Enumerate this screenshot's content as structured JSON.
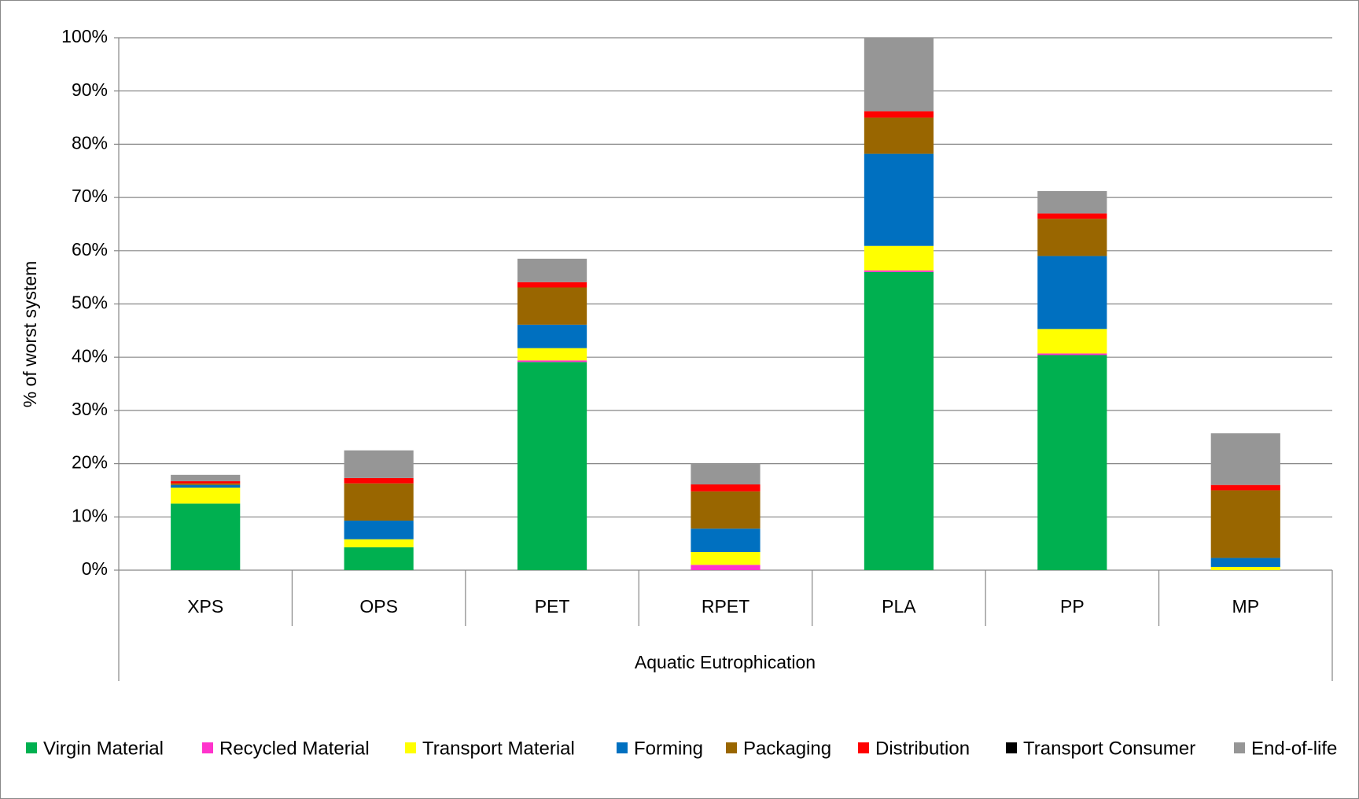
{
  "chart_data": {
    "type": "stacked_bar",
    "ylabel": "% of worst system",
    "xlabel": "Aquatic Eutrophication",
    "categories": [
      "XPS",
      "OPS",
      "PET",
      "RPET",
      "PLA",
      "PP",
      "MP"
    ],
    "series": [
      {
        "name": "Virgin Material",
        "color": "#00b050",
        "values": [
          12.5,
          4.3,
          39.1,
          0,
          56.0,
          40.4,
          0
        ]
      },
      {
        "name": "Recycled Material",
        "color": "#ff33cc",
        "values": [
          0,
          0,
          0.3,
          1.0,
          0.3,
          0.3,
          0
        ]
      },
      {
        "name": "Transport Material",
        "color": "#ffff00",
        "values": [
          3.0,
          1.5,
          2.3,
          2.4,
          4.6,
          4.6,
          0.6
        ]
      },
      {
        "name": "Forming",
        "color": "#0070c0",
        "values": [
          0.5,
          3.5,
          4.4,
          4.4,
          17.3,
          13.7,
          1.7
        ]
      },
      {
        "name": "Packaging",
        "color": "#996600",
        "values": [
          0.3,
          7.0,
          7.0,
          7.0,
          6.8,
          7.0,
          12.7
        ]
      },
      {
        "name": "Distribution",
        "color": "#ff0000",
        "values": [
          0.4,
          1.0,
          1.0,
          1.3,
          1.2,
          1.0,
          1.0
        ]
      },
      {
        "name": "Transport Consumer",
        "color": "#000000",
        "values": [
          0,
          0,
          0,
          0,
          0,
          0,
          0
        ]
      },
      {
        "name": "End-of-life",
        "color": "#969696",
        "values": [
          1.2,
          5.2,
          4.4,
          3.9,
          13.8,
          4.2,
          9.7
        ]
      }
    ],
    "ylim": [
      0,
      100
    ],
    "yticks": [
      {
        "value": 0,
        "label": "0%"
      },
      {
        "value": 10,
        "label": "10%"
      },
      {
        "value": 20,
        "label": "20%"
      },
      {
        "value": 30,
        "label": "30%"
      },
      {
        "value": 40,
        "label": "40%"
      },
      {
        "value": 50,
        "label": "50%"
      },
      {
        "value": 60,
        "label": "60%"
      },
      {
        "value": 70,
        "label": "70%"
      },
      {
        "value": 80,
        "label": "80%"
      },
      {
        "value": 90,
        "label": "90%"
      },
      {
        "value": 100,
        "label": "100%"
      }
    ],
    "grid": true,
    "legend": "bottom"
  }
}
